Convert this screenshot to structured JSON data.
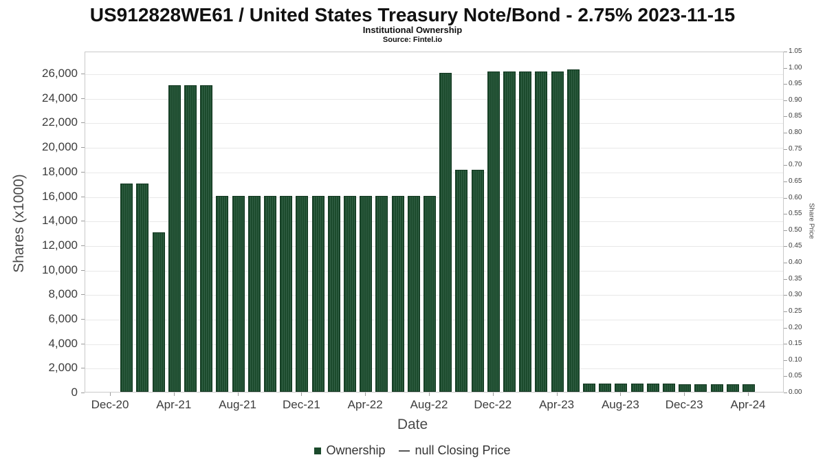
{
  "header": {
    "title": "US912828WE61 / United States Treasury Note/Bond - 2.75% 2023-11-15",
    "subtitle": "Institutional Ownership",
    "source": "Source: Fintel.io"
  },
  "legend": {
    "ownership_label": "Ownership",
    "price_label": "null Closing Price"
  },
  "chart_data": {
    "type": "bar",
    "title": "US912828WE61 / United States Treasury Note/Bond - 2.75% 2023-11-15",
    "subtitle": "Institutional Ownership",
    "source": "Source: Fintel.io",
    "xlabel": "Date",
    "ylabel_left": "Shares (x1000)",
    "ylabel_right": "Share Price",
    "legend_position": "bottom",
    "grid": true,
    "bar_color": "#1b4a2c",
    "bar_stripe_color": "#336146",
    "categories": [
      "Jan-21",
      "Feb-21",
      "Mar-21",
      "Apr-21",
      "May-21",
      "Jun-21",
      "Jul-21",
      "Aug-21",
      "Sep-21",
      "Oct-21",
      "Nov-21",
      "Dec-21",
      "Jan-22",
      "Feb-22",
      "Mar-22",
      "Apr-22",
      "May-22",
      "Jun-22",
      "Jul-22",
      "Aug-22",
      "Sep-22",
      "Oct-22",
      "Nov-22",
      "Dec-22",
      "Jan-23",
      "Feb-23",
      "Mar-23",
      "Apr-23",
      "May-23",
      "Jun-23",
      "Jul-23",
      "Aug-23",
      "Sep-23",
      "Oct-23",
      "Nov-23",
      "Dec-23",
      "Jan-24",
      "Feb-24",
      "Mar-24",
      "Apr-24"
    ],
    "series": [
      {
        "name": "Ownership",
        "type": "bar",
        "values": [
          17000,
          17000,
          13000,
          25000,
          25000,
          25000,
          16000,
          16000,
          16000,
          16000,
          16000,
          16000,
          16000,
          16000,
          16000,
          16000,
          16000,
          16000,
          16000,
          16000,
          26000,
          18100,
          18100,
          26100,
          26100,
          26100,
          26100,
          26100,
          26300,
          700,
          700,
          700,
          700,
          700,
          700,
          600,
          600,
          600,
          600,
          600
        ]
      },
      {
        "name": "null Closing Price",
        "type": "line",
        "values": []
      }
    ],
    "x_tick_labels": [
      "Dec-20",
      "Apr-21",
      "Aug-21",
      "Dec-21",
      "Apr-22",
      "Aug-22",
      "Dec-22",
      "Apr-23",
      "Aug-23",
      "Dec-23",
      "Apr-24"
    ],
    "left_axis": {
      "min": 0,
      "max": 27800,
      "tick_step": 2000,
      "tick_top": 26000
    },
    "right_axis": {
      "min": 0,
      "max": 1.05,
      "tick_step": 0.05
    }
  }
}
